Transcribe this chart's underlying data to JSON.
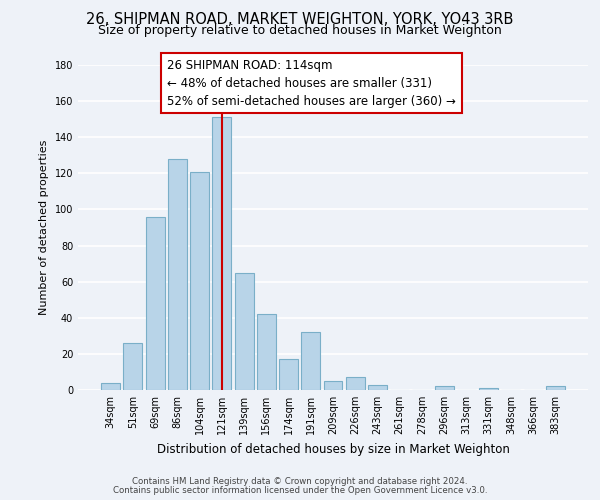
{
  "title": "26, SHIPMAN ROAD, MARKET WEIGHTON, YORK, YO43 3RB",
  "subtitle": "Size of property relative to detached houses in Market Weighton",
  "xlabel": "Distribution of detached houses by size in Market Weighton",
  "ylabel": "Number of detached properties",
  "categories": [
    "34sqm",
    "51sqm",
    "69sqm",
    "86sqm",
    "104sqm",
    "121sqm",
    "139sqm",
    "156sqm",
    "174sqm",
    "191sqm",
    "209sqm",
    "226sqm",
    "243sqm",
    "261sqm",
    "278sqm",
    "296sqm",
    "313sqm",
    "331sqm",
    "348sqm",
    "366sqm",
    "383sqm"
  ],
  "values": [
    4,
    26,
    96,
    128,
    121,
    151,
    65,
    42,
    17,
    32,
    5,
    7,
    3,
    0,
    0,
    2,
    0,
    1,
    0,
    0,
    2
  ],
  "bar_color": "#b8d4e8",
  "bar_edge_color": "#7aafc8",
  "ylim": [
    0,
    180
  ],
  "yticks": [
    0,
    20,
    40,
    60,
    80,
    100,
    120,
    140,
    160,
    180
  ],
  "property_label": "26 SHIPMAN ROAD: 114sqm",
  "annotation_line1": "← 48% of detached houses are smaller (331)",
  "annotation_line2": "52% of semi-detached houses are larger (360) →",
  "vline_category_index": 5,
  "vline_color": "#cc0000",
  "footer_line1": "Contains HM Land Registry data © Crown copyright and database right 2024.",
  "footer_line2": "Contains public sector information licensed under the Open Government Licence v3.0.",
  "background_color": "#eef2f8",
  "grid_color": "#ffffff",
  "title_fontsize": 10.5,
  "subtitle_fontsize": 9.0,
  "annot_fontsize": 8.5,
  "footer_fontsize": 6.2,
  "ylabel_fontsize": 8.0,
  "xlabel_fontsize": 8.5,
  "tick_fontsize": 7.0
}
